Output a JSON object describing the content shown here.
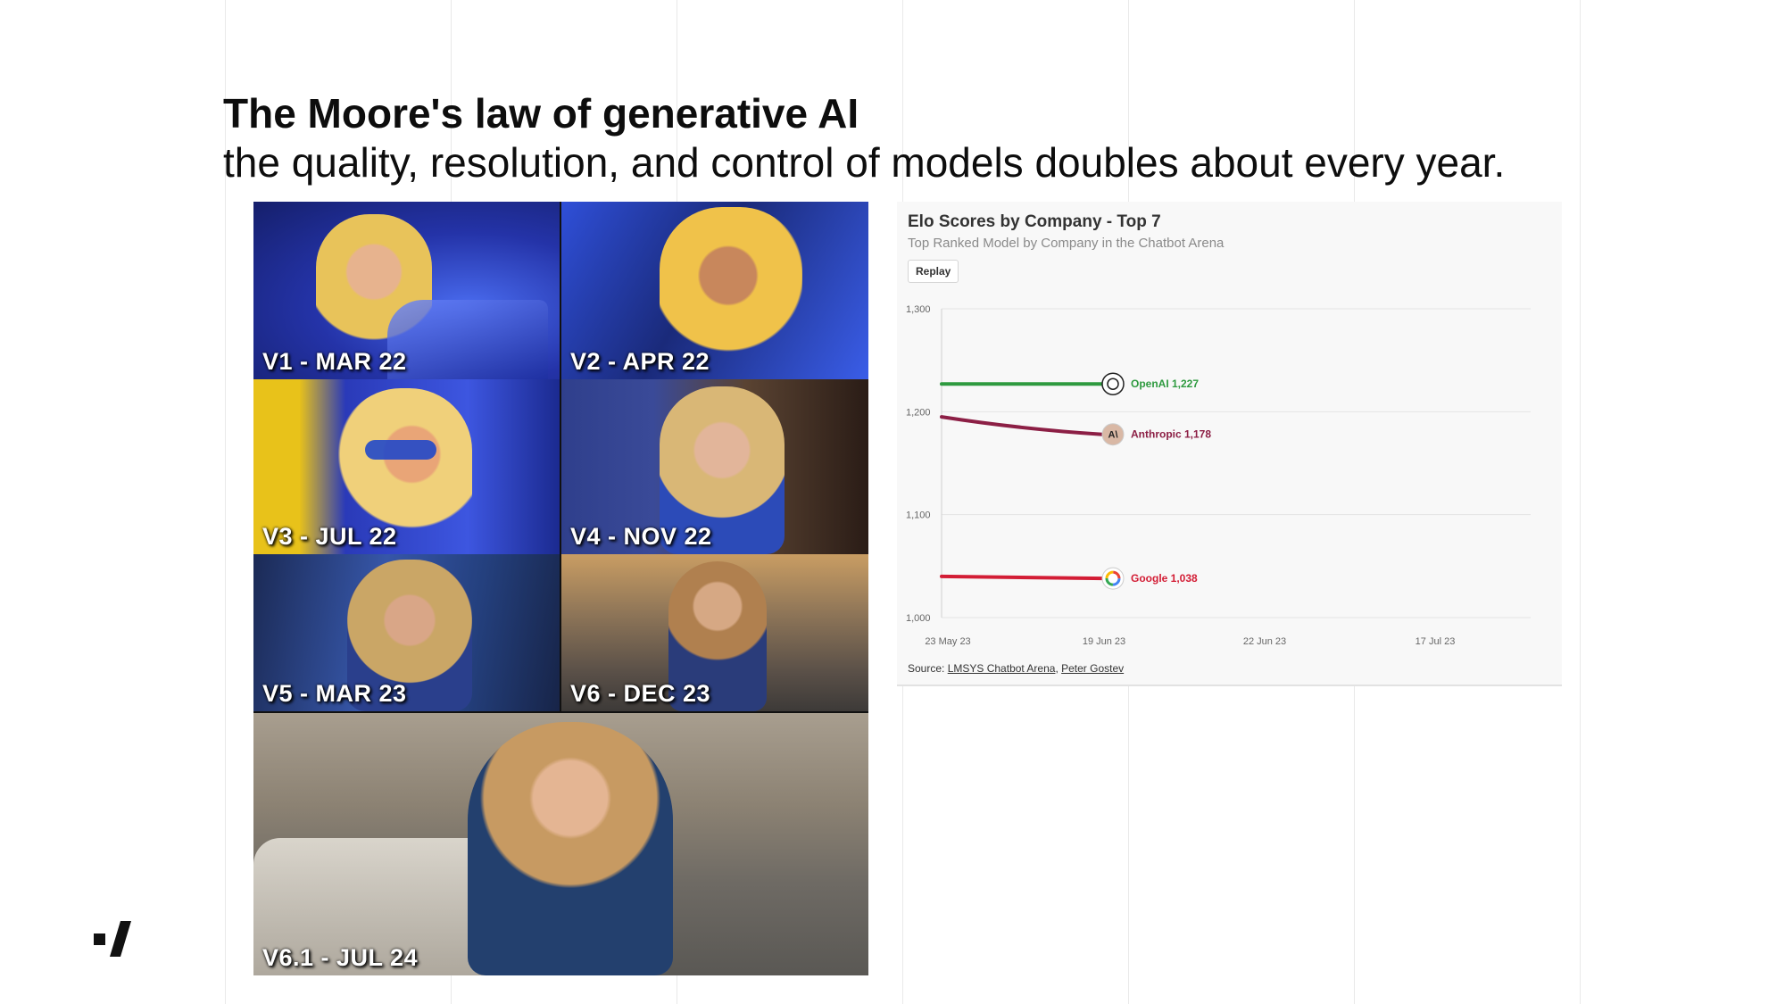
{
  "slide": {
    "title": "The Moore's law of generative AI",
    "subtitle": "the quality, resolution, and control of models doubles about every year."
  },
  "collage": {
    "tiles": [
      {
        "label": "V1 - MAR 22"
      },
      {
        "label": "V2 - APR 22"
      },
      {
        "label": "V3 - JUL 22"
      },
      {
        "label": "V4 - NOV 22"
      },
      {
        "label": "V5 - MAR 23"
      },
      {
        "label": "V6 - DEC 23"
      },
      {
        "label": "V6.1 - JUL 24"
      }
    ]
  },
  "chart": {
    "replay_label": "Replay",
    "source_prefix": "Source: ",
    "source_links": [
      "LMSYS Chatbot Arena",
      "Peter Gostev"
    ]
  },
  "chart_data": {
    "type": "line",
    "title": "Elo Scores by Company - Top 7",
    "subtitle": "Top Ranked Model by Company in the Chatbot Arena",
    "x_ticks": [
      "23 May 23",
      "19 Jun 23",
      "22 Jun 23",
      "17 Jul 23"
    ],
    "y_ticks": [
      "1,000",
      "1,100",
      "1,200",
      "1,300"
    ],
    "y_tick_values": [
      1000,
      1100,
      1200,
      1300
    ],
    "ylim": [
      1000,
      1300
    ],
    "grid": true,
    "series": [
      {
        "name": "OpenAI",
        "value_label": "1,227",
        "color": "#2e9a3f",
        "icon": "openai-logo-icon",
        "points": [
          {
            "x": 0,
            "y": 1227
          },
          {
            "x": 0.5,
            "y": 1227
          },
          {
            "x": 1,
            "y": 1227
          }
        ]
      },
      {
        "name": "Anthropic",
        "value_label": "1,178",
        "color": "#8c1f45",
        "icon": "anthropic-logo-icon",
        "points": [
          {
            "x": 0,
            "y": 1195
          },
          {
            "x": 0.5,
            "y": 1183
          },
          {
            "x": 1,
            "y": 1178
          }
        ]
      },
      {
        "name": "Google",
        "value_label": "1,038",
        "color": "#d31d35",
        "icon": "google-logo-icon",
        "points": [
          {
            "x": 0,
            "y": 1040
          },
          {
            "x": 0.5,
            "y": 1039
          },
          {
            "x": 1,
            "y": 1038
          }
        ]
      }
    ]
  },
  "colors": {
    "title_text": "#0d0d0d",
    "card_bg": "#f8f8f8",
    "openai": "#2e9a3f",
    "anthropic": "#8c1f45",
    "google": "#d31d35"
  }
}
